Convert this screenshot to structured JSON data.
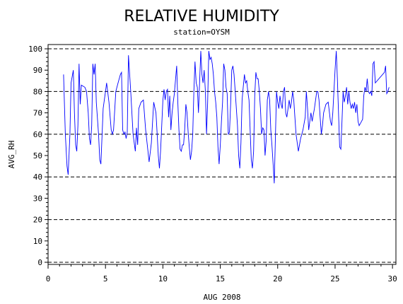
{
  "chart_data": {
    "type": "line",
    "title": "RELATIVE HUMIDITY",
    "subtitle": "station=OYSM",
    "xlabel": "AUG 2008",
    "ylabel": "AVG_RH",
    "xlim": [
      0,
      30.3
    ],
    "ylim": [
      -1,
      102
    ],
    "x_ticks": [
      0,
      5,
      10,
      15,
      20,
      25,
      30
    ],
    "y_ticks": [
      0,
      10,
      20,
      30,
      40,
      50,
      60,
      70,
      80,
      90,
      100
    ],
    "reference_lines": [
      0,
      20,
      40,
      60,
      80,
      100
    ],
    "series": [
      {
        "color": "#0000ff",
        "points": [
          [
            1.35,
            88
          ],
          [
            1.5,
            60
          ],
          [
            1.65,
            45
          ],
          [
            1.75,
            41
          ],
          [
            1.9,
            60
          ],
          [
            2.0,
            84
          ],
          [
            2.1,
            87
          ],
          [
            2.2,
            90
          ],
          [
            2.3,
            70
          ],
          [
            2.4,
            55
          ],
          [
            2.5,
            52
          ],
          [
            2.6,
            64
          ],
          [
            2.7,
            93
          ],
          [
            2.8,
            74
          ],
          [
            2.9,
            83
          ],
          [
            3.2,
            82
          ],
          [
            3.35,
            80
          ],
          [
            3.5,
            70
          ],
          [
            3.6,
            58
          ],
          [
            3.7,
            55
          ],
          [
            3.8,
            64
          ],
          [
            3.9,
            93
          ],
          [
            4.0,
            88
          ],
          [
            4.1,
            93
          ],
          [
            4.2,
            75
          ],
          [
            4.4,
            60
          ],
          [
            4.5,
            48
          ],
          [
            4.6,
            46
          ],
          [
            4.8,
            72
          ],
          [
            5.0,
            80
          ],
          [
            5.1,
            84
          ],
          [
            5.3,
            75
          ],
          [
            5.5,
            62
          ],
          [
            5.6,
            60
          ],
          [
            5.7,
            62
          ],
          [
            5.9,
            80
          ],
          [
            6.1,
            84
          ],
          [
            6.3,
            88
          ],
          [
            6.4,
            89
          ],
          [
            6.5,
            62
          ],
          [
            6.6,
            60
          ],
          [
            6.7,
            61
          ],
          [
            6.8,
            58
          ],
          [
            6.9,
            61
          ],
          [
            7.0,
            97
          ],
          [
            7.2,
            80
          ],
          [
            7.4,
            60
          ],
          [
            7.6,
            52
          ],
          [
            7.7,
            63
          ],
          [
            7.8,
            55
          ],
          [
            7.9,
            72
          ],
          [
            8.1,
            75
          ],
          [
            8.3,
            76
          ],
          [
            8.5,
            62
          ],
          [
            8.7,
            52
          ],
          [
            8.8,
            47
          ],
          [
            9.0,
            56
          ],
          [
            9.2,
            75
          ],
          [
            9.4,
            70
          ],
          [
            9.5,
            60
          ],
          [
            9.6,
            50
          ],
          [
            9.7,
            44
          ],
          [
            9.8,
            52
          ],
          [
            10.0,
            76
          ],
          [
            10.1,
            81
          ],
          [
            10.2,
            76
          ],
          [
            10.3,
            80
          ],
          [
            10.4,
            81
          ],
          [
            10.5,
            68
          ],
          [
            10.6,
            78
          ],
          [
            10.7,
            62
          ],
          [
            10.8,
            70
          ],
          [
            10.9,
            75
          ],
          [
            11.0,
            79
          ],
          [
            11.2,
            92
          ],
          [
            11.3,
            75
          ],
          [
            11.4,
            62
          ],
          [
            11.5,
            53
          ],
          [
            11.6,
            52
          ],
          [
            11.7,
            55
          ],
          [
            11.8,
            55
          ],
          [
            11.9,
            62
          ],
          [
            12.0,
            74
          ],
          [
            12.1,
            70
          ],
          [
            12.2,
            61
          ],
          [
            12.3,
            54
          ],
          [
            12.4,
            48
          ],
          [
            12.5,
            52
          ],
          [
            12.6,
            60
          ],
          [
            12.7,
            80
          ],
          [
            12.8,
            94
          ],
          [
            12.9,
            84
          ],
          [
            13.0,
            82
          ],
          [
            13.1,
            70
          ],
          [
            13.3,
            99
          ],
          [
            13.4,
            88
          ],
          [
            13.5,
            84
          ],
          [
            13.6,
            90
          ],
          [
            13.7,
            80
          ],
          [
            13.8,
            60
          ],
          [
            13.9,
            75
          ],
          [
            14.0,
            99
          ],
          [
            14.1,
            95
          ],
          [
            14.2,
            96
          ],
          [
            14.3,
            93
          ],
          [
            14.4,
            88
          ],
          [
            14.5,
            80
          ],
          [
            14.6,
            75
          ],
          [
            14.7,
            68
          ],
          [
            14.8,
            54
          ],
          [
            14.9,
            46
          ],
          [
            15.0,
            55
          ],
          [
            15.1,
            66
          ],
          [
            15.2,
            75
          ],
          [
            15.3,
            93
          ],
          [
            15.4,
            90
          ],
          [
            15.5,
            82
          ],
          [
            15.6,
            79
          ],
          [
            15.7,
            60
          ],
          [
            15.8,
            61
          ],
          [
            15.9,
            74
          ],
          [
            16.0,
            90
          ],
          [
            16.1,
            92
          ],
          [
            16.2,
            88
          ],
          [
            16.3,
            80
          ],
          [
            16.4,
            72
          ],
          [
            16.5,
            64
          ],
          [
            16.6,
            50
          ],
          [
            16.7,
            44
          ],
          [
            16.8,
            56
          ],
          [
            16.9,
            76
          ],
          [
            17.0,
            82
          ],
          [
            17.1,
            88
          ],
          [
            17.2,
            84
          ],
          [
            17.3,
            85
          ],
          [
            17.4,
            80
          ],
          [
            17.5,
            76
          ],
          [
            17.6,
            62
          ],
          [
            17.7,
            48
          ],
          [
            17.8,
            44
          ],
          [
            17.9,
            52
          ],
          [
            18.0,
            78
          ],
          [
            18.1,
            89
          ],
          [
            18.2,
            86
          ],
          [
            18.3,
            86
          ],
          [
            18.4,
            80
          ],
          [
            18.5,
            72
          ],
          [
            18.6,
            60
          ],
          [
            18.7,
            63
          ],
          [
            18.8,
            62
          ],
          [
            18.9,
            50
          ],
          [
            19.0,
            57
          ],
          [
            19.1,
            76
          ],
          [
            19.2,
            80
          ],
          [
            19.3,
            76
          ],
          [
            19.4,
            62
          ],
          [
            19.5,
            55
          ],
          [
            19.6,
            46
          ],
          [
            19.7,
            37
          ],
          [
            19.8,
            58
          ],
          [
            19.9,
            80
          ],
          [
            20.0,
            75
          ],
          [
            20.1,
            72
          ],
          [
            20.2,
            78
          ],
          [
            20.3,
            74
          ],
          [
            20.4,
            72
          ],
          [
            20.5,
            80
          ],
          [
            20.6,
            82
          ],
          [
            20.7,
            70
          ],
          [
            20.8,
            68
          ],
          [
            20.9,
            72
          ],
          [
            21.0,
            76
          ],
          [
            21.1,
            72
          ],
          [
            21.2,
            75
          ],
          [
            21.3,
            80
          ],
          [
            21.4,
            76
          ],
          [
            21.5,
            68
          ],
          [
            21.6,
            60
          ],
          [
            21.7,
            56
          ],
          [
            21.8,
            52
          ],
          [
            22.0,
            58
          ],
          [
            22.2,
            62
          ],
          [
            22.4,
            68
          ],
          [
            22.5,
            80
          ],
          [
            22.6,
            72
          ],
          [
            22.7,
            62
          ],
          [
            22.8,
            66
          ],
          [
            22.9,
            70
          ],
          [
            23.0,
            66
          ],
          [
            23.2,
            72
          ],
          [
            23.4,
            80
          ],
          [
            23.5,
            80
          ],
          [
            23.6,
            76
          ],
          [
            23.7,
            68
          ],
          [
            23.8,
            60
          ],
          [
            23.9,
            64
          ],
          [
            24.0,
            70
          ],
          [
            24.2,
            74
          ],
          [
            24.4,
            75
          ],
          [
            24.6,
            66
          ],
          [
            24.7,
            64
          ],
          [
            24.8,
            70
          ],
          [
            25.0,
            90
          ],
          [
            25.1,
            99
          ],
          [
            25.2,
            86
          ],
          [
            25.3,
            70
          ],
          [
            25.4,
            54
          ],
          [
            25.5,
            53
          ],
          [
            25.6,
            66
          ],
          [
            25.7,
            80
          ],
          [
            25.8,
            75
          ],
          [
            25.9,
            78
          ],
          [
            26.0,
            82
          ],
          [
            26.1,
            74
          ],
          [
            26.2,
            80
          ],
          [
            26.3,
            75
          ],
          [
            26.4,
            72
          ],
          [
            26.5,
            74
          ],
          [
            26.6,
            72
          ],
          [
            26.7,
            75
          ],
          [
            26.8,
            70
          ],
          [
            26.9,
            74
          ],
          [
            27.0,
            66
          ],
          [
            27.1,
            64
          ],
          [
            27.2,
            65
          ],
          [
            27.3,
            66
          ],
          [
            27.4,
            67
          ],
          [
            27.5,
            78
          ],
          [
            27.6,
            82
          ],
          [
            27.7,
            80
          ],
          [
            27.8,
            86
          ],
          [
            27.9,
            80
          ],
          [
            28.0,
            79
          ],
          [
            28.1,
            80
          ],
          [
            28.2,
            78
          ],
          [
            28.3,
            93
          ],
          [
            28.4,
            94
          ],
          [
            28.5,
            84
          ],
          [
            29.3,
            89
          ],
          [
            29.4,
            92
          ],
          [
            29.5,
            79
          ],
          [
            29.6,
            80
          ],
          [
            29.7,
            82
          ]
        ]
      }
    ]
  }
}
